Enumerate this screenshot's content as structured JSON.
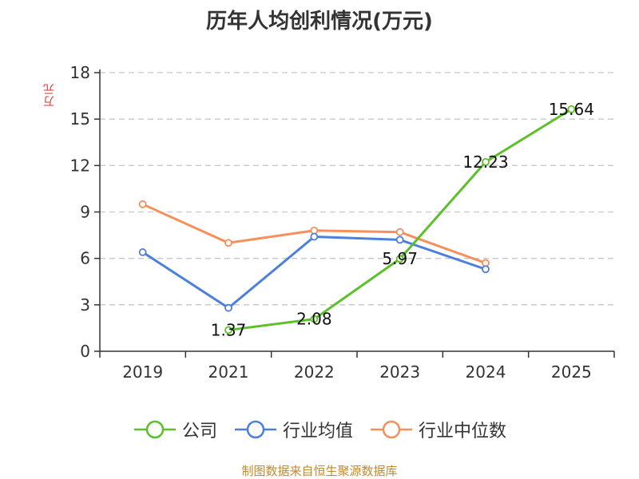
{
  "chart_data": {
    "type": "line",
    "title": "历年人均创利情况(万元)",
    "ylabel": "万元",
    "categories": [
      "2019",
      "2021",
      "2022",
      "2023",
      "2024",
      "2025"
    ],
    "ylim": [
      0,
      18
    ],
    "yticks": [
      0,
      3,
      6,
      9,
      12,
      15,
      18
    ],
    "grid": true,
    "legend_position": "bottom",
    "series": [
      {
        "name": "公司",
        "color": "#5cc02a",
        "values": [
          null,
          1.37,
          2.08,
          5.97,
          12.23,
          15.64
        ],
        "labels": [
          "",
          "1.37",
          "2.08",
          "5.97",
          "12.23",
          "15.64"
        ]
      },
      {
        "name": "行业均值",
        "color": "#4d7fdc",
        "values": [
          6.4,
          2.8,
          7.4,
          7.2,
          5.3,
          null
        ]
      },
      {
        "name": "行业中位数",
        "color": "#f5905a",
        "values": [
          9.5,
          7.0,
          7.8,
          7.7,
          5.7,
          null
        ]
      }
    ]
  },
  "source": "制图数据来自恒生聚源数据库"
}
